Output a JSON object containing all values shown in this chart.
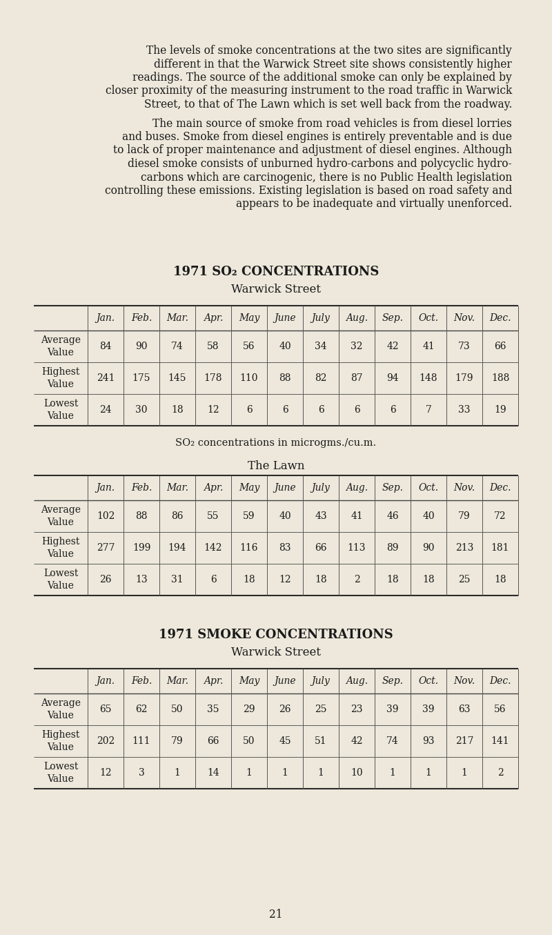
{
  "bg_color": "#ede8db",
  "text_color": "#1a1a1a",
  "para1_lines": [
    "        The levels of smoke concentrations at the two sites are significantly",
    "different in that the Warwick Street site shows consistently higher",
    "readings. The source of the additional smoke can only be explained by",
    "closer proximity of the measuring instrument to the road traffic in Warwick",
    "Street, to that of The Lawn which is set well back from the roadway."
  ],
  "para2_lines": [
    "        The main source of smoke from road vehicles is from diesel lorries",
    "and buses. Smoke from diesel engines is entirely preventable and is due",
    "to lack of proper maintenance and adjustment of diesel engines. Although",
    "diesel smoke consists of unburned hydro-carbons and polycyclic hydro-",
    "carbons which are carcinogenic, there is no Public Health legislation",
    "controlling these emissions. Existing legislation is based on road safety and",
    "appears to be inadequate and virtually unenforced."
  ],
  "table1_title": "1971 SO₂ CONCENTRATIONS",
  "table1_subtitle": "Warwick Street",
  "table1_note": "SO₂ concentrations in microgms./cu.m.",
  "table2_subtitle": "The Lawn",
  "table3_title": "1971 SMOKE CONCENTRATIONS",
  "table3_subtitle": "Warwick Street",
  "months": [
    "Jan.",
    "Feb.",
    "Mar.",
    "Apr.",
    "May",
    "June",
    "July",
    "Aug.",
    "Sep.",
    "Oct.",
    "Nov.",
    "Dec."
  ],
  "so2_warwick": {
    "average": [
      84,
      90,
      74,
      58,
      56,
      40,
      34,
      32,
      42,
      41,
      73,
      66
    ],
    "highest": [
      241,
      175,
      145,
      178,
      110,
      88,
      82,
      87,
      94,
      148,
      179,
      188
    ],
    "lowest": [
      24,
      30,
      18,
      12,
      6,
      6,
      6,
      6,
      6,
      7,
      33,
      19
    ]
  },
  "so2_lawn": {
    "average": [
      102,
      88,
      86,
      55,
      59,
      40,
      43,
      41,
      46,
      40,
      79,
      72
    ],
    "highest": [
      277,
      199,
      194,
      142,
      116,
      83,
      66,
      113,
      89,
      90,
      213,
      181
    ],
    "lowest": [
      26,
      13,
      31,
      6,
      18,
      12,
      18,
      2,
      18,
      18,
      25,
      18
    ]
  },
  "smoke_warwick": {
    "average": [
      65,
      62,
      50,
      35,
      29,
      26,
      25,
      23,
      39,
      39,
      63,
      56
    ],
    "highest": [
      202,
      111,
      79,
      66,
      50,
      45,
      51,
      42,
      74,
      93,
      217,
      141
    ],
    "lowest": [
      12,
      3,
      1,
      14,
      1,
      1,
      1,
      10,
      1,
      1,
      1,
      2
    ]
  },
  "page_number": "21",
  "font_size_body": 11.2,
  "font_size_title": 12.0,
  "font_size_table": 10.0
}
